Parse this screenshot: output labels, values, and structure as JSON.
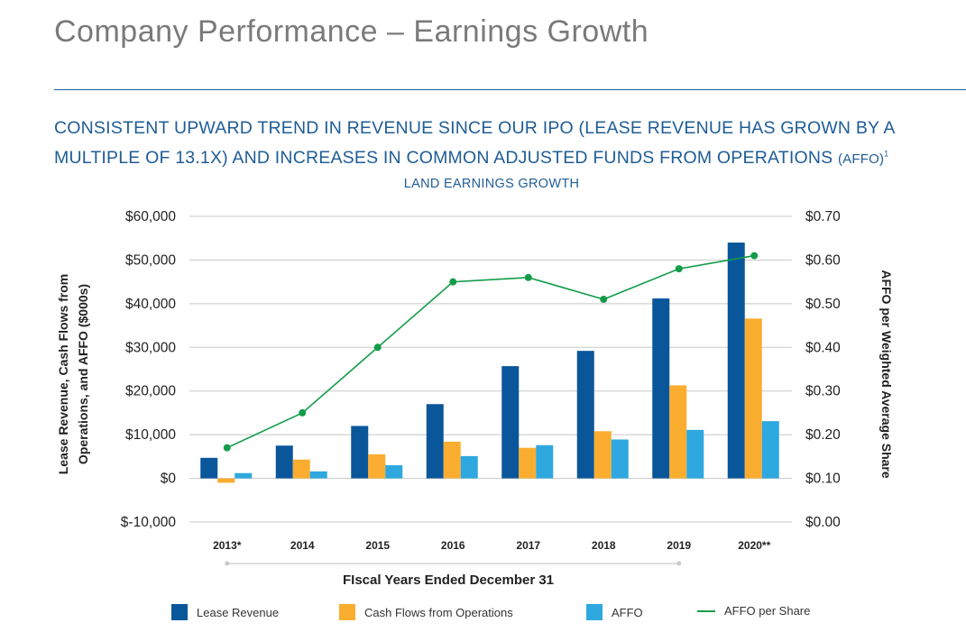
{
  "page": {
    "title": "Company Performance – Earnings Growth",
    "headline_line1": "CONSISTENT UPWARD TREND IN REVENUE SINCE OUR IPO (LEASE REVENUE HAS GROWN BY A",
    "headline_line2": "MULTIPLE OF 13.1X) AND INCREASES IN COMMON ADJUSTED FUNDS FROM OPERATIONS",
    "headline_line2_small": "(AFFO)",
    "headline_footnote": "1"
  },
  "colors": {
    "lease_revenue": "#0a569b",
    "cash_flows": "#fbad2f",
    "affo": "#2ea8df",
    "affo_per_share": "#139c4a",
    "heading": "#1f5d96",
    "title": "#7a7a7a",
    "grid": "#c8c8c8"
  },
  "chart_data": {
    "type": "bar",
    "title": "LAND EARNINGS GROWTH",
    "xlabel": "FIscal Years Ended December 31",
    "ylabel_left": "Lease Revenue, Cash Flows from Operations, and AFFO ($000s)",
    "ylabel_left_lines": [
      "Lease Revenue, Cash Flows from",
      "Operations, and AFFO ($000s)"
    ],
    "ylabel_right": "AFFO per Weighted Average Share",
    "categories": [
      "2013*",
      "2014",
      "2015",
      "2016",
      "2017",
      "2018",
      "2019",
      "2020**"
    ],
    "ylim_left": [
      -10000,
      60000
    ],
    "yticks_left": [
      "$-10,000",
      "$0",
      "$10,000",
      "$20,000",
      "$30,000",
      "$40,000",
      "$50,000",
      "$60,000"
    ],
    "ylim_right": [
      0.0,
      0.7
    ],
    "yticks_right": [
      "$0.00",
      "$0.10",
      "$0.20",
      "$0.30",
      "$0.40",
      "$0.50",
      "$0.60",
      "$0.70"
    ],
    "grid": true,
    "legend_position": "bottom",
    "series": [
      {
        "name": "Lease Revenue",
        "kind": "bar",
        "axis": "left",
        "values": [
          4700,
          7500,
          12000,
          17000,
          25700,
          29200,
          41200,
          54000
        ]
      },
      {
        "name": "Cash Flows from Operations",
        "kind": "bar",
        "axis": "left",
        "values": [
          -1000,
          4300,
          5500,
          8400,
          7000,
          10800,
          21300,
          36600
        ]
      },
      {
        "name": "AFFO",
        "kind": "bar",
        "axis": "left",
        "values": [
          1200,
          1600,
          3000,
          5100,
          7600,
          8900,
          11100,
          13100
        ]
      },
      {
        "name": "AFFO per Share",
        "kind": "line",
        "axis": "right",
        "values": [
          0.17,
          0.25,
          0.4,
          0.55,
          0.56,
          0.51,
          0.58,
          0.61
        ]
      }
    ]
  }
}
